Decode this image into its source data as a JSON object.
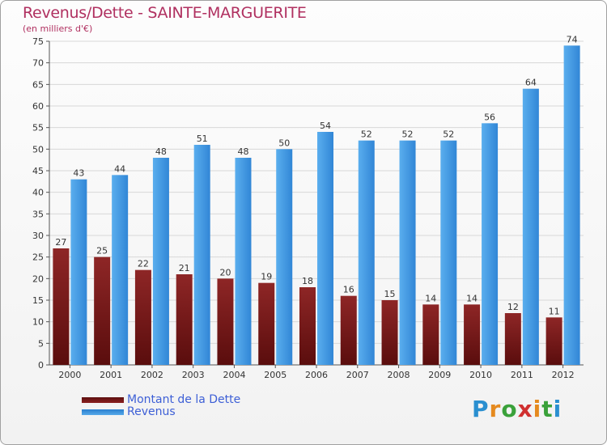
{
  "chart_data": {
    "type": "bar",
    "title": "Revenus/Dette - SAINTE-MARGUERITE",
    "subtitle": "(en milliers d'€)",
    "categories": [
      "2000",
      "2001",
      "2002",
      "2003",
      "2004",
      "2005",
      "2006",
      "2007",
      "2008",
      "2009",
      "2010",
      "2011",
      "2012"
    ],
    "series": [
      {
        "name": "Montant de la Dette",
        "color": "#7a1c1c",
        "values": [
          27,
          25,
          22,
          21,
          20,
          19,
          18,
          16,
          15,
          14,
          14,
          12,
          11
        ]
      },
      {
        "name": "Revenus",
        "color": "#3d8fd9",
        "values": [
          43,
          44,
          48,
          51,
          48,
          50,
          54,
          52,
          52,
          52,
          56,
          64,
          74
        ]
      }
    ],
    "ylim": [
      0,
      75
    ],
    "yticks": [
      0,
      5,
      10,
      15,
      20,
      25,
      30,
      35,
      40,
      45,
      50,
      55,
      60,
      65,
      70,
      75
    ],
    "grid": true,
    "legend": "bottom-left"
  },
  "logo": {
    "letters": [
      "P",
      "r",
      "o",
      "x",
      "i",
      "t",
      "i"
    ],
    "colors": [
      "#2a8fd0",
      "#e58a1f",
      "#3aa13a",
      "#d03030",
      "#e58a1f",
      "#3aa13a",
      "#2a8fd0"
    ]
  }
}
